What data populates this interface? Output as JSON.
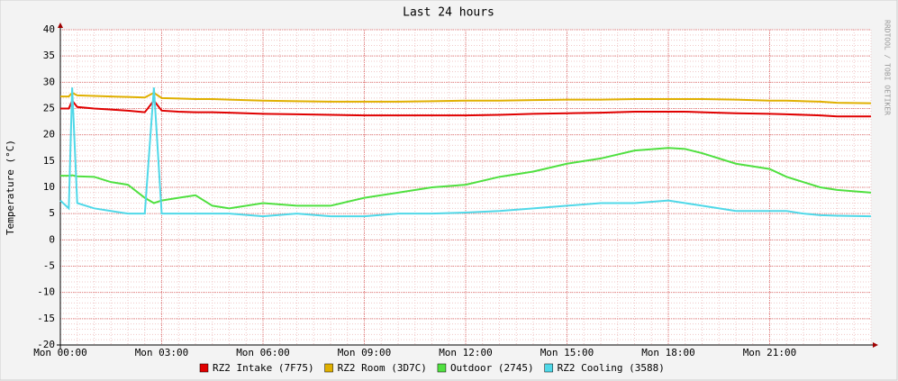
{
  "chart_data": {
    "type": "line",
    "title": "Last 24 hours",
    "y_label": "Temperature (°C)",
    "watermark": "RRDTOOL / TOBI OETIKER",
    "x": [
      0,
      0.25,
      0.35,
      0.5,
      1,
      1.5,
      2,
      2.5,
      2.77,
      3,
      3.5,
      4,
      4.5,
      5,
      6,
      7,
      8,
      9,
      10,
      11,
      12,
      13,
      14,
      15,
      16,
      17,
      18,
      18.5,
      19,
      20,
      21,
      21.5,
      22,
      22.5,
      23,
      24
    ],
    "series": [
      {
        "name": "RZ2 Intake (7F75)",
        "color": "#e00000",
        "values": [
          25,
          25,
          26.5,
          25.3,
          25,
          24.8,
          24.6,
          24.3,
          26.5,
          24.6,
          24.4,
          24.3,
          24.3,
          24.2,
          24,
          23.9,
          23.8,
          23.7,
          23.7,
          23.7,
          23.7,
          23.8,
          24,
          24.1,
          24.2,
          24.4,
          24.4,
          24.4,
          24.3,
          24.1,
          24,
          23.9,
          23.8,
          23.7,
          23.5,
          23.5
        ]
      },
      {
        "name": "RZ2 Room (3D7C)",
        "color": "#e0b000",
        "values": [
          27.3,
          27.3,
          28,
          27.5,
          27.4,
          27.3,
          27.2,
          27.1,
          28,
          27,
          26.9,
          26.8,
          26.8,
          26.7,
          26.5,
          26.4,
          26.3,
          26.3,
          26.3,
          26.4,
          26.5,
          26.5,
          26.6,
          26.7,
          26.7,
          26.8,
          26.8,
          26.8,
          26.8,
          26.7,
          26.5,
          26.5,
          26.4,
          26.3,
          26.1,
          26
        ]
      },
      {
        "name": "Outdoor (2745)",
        "color": "#50e040",
        "values": [
          12.2,
          12.2,
          12.3,
          12.1,
          12,
          11,
          10.5,
          8,
          7,
          7.5,
          8,
          8.5,
          6.5,
          6,
          7,
          6.5,
          6.5,
          8,
          9,
          10,
          10.5,
          12,
          13,
          14.5,
          15.5,
          17,
          17.5,
          17.3,
          16.5,
          14.5,
          13.5,
          12,
          11,
          10,
          9.5,
          9
        ]
      },
      {
        "name": "RZ2 Cooling (3588)",
        "color": "#50d8e8",
        "values": [
          7.5,
          6,
          29,
          7,
          6,
          5.5,
          5,
          5,
          29,
          5,
          5,
          5,
          5,
          5,
          4.5,
          5,
          4.5,
          4.5,
          5,
          5,
          5.2,
          5.5,
          6,
          6.5,
          7,
          7,
          7.5,
          7,
          6.5,
          5.5,
          5.5,
          5.5,
          5,
          4.7,
          4.6,
          4.5
        ]
      }
    ],
    "xlim": [
      0,
      24
    ],
    "ylim": [
      -20,
      40
    ],
    "xticks": [
      {
        "value": 0,
        "label": "Mon 00:00"
      },
      {
        "value": 3,
        "label": "Mon 03:00"
      },
      {
        "value": 6,
        "label": "Mon 06:00"
      },
      {
        "value": 9,
        "label": "Mon 09:00"
      },
      {
        "value": 12,
        "label": "Mon 12:00"
      },
      {
        "value": 15,
        "label": "Mon 15:00"
      },
      {
        "value": 18,
        "label": "Mon 18:00"
      },
      {
        "value": 21,
        "label": "Mon 21:00"
      }
    ],
    "yticks": [
      -20,
      -15,
      -10,
      -5,
      0,
      5,
      10,
      15,
      20,
      25,
      30,
      35,
      40
    ],
    "grid": true
  }
}
